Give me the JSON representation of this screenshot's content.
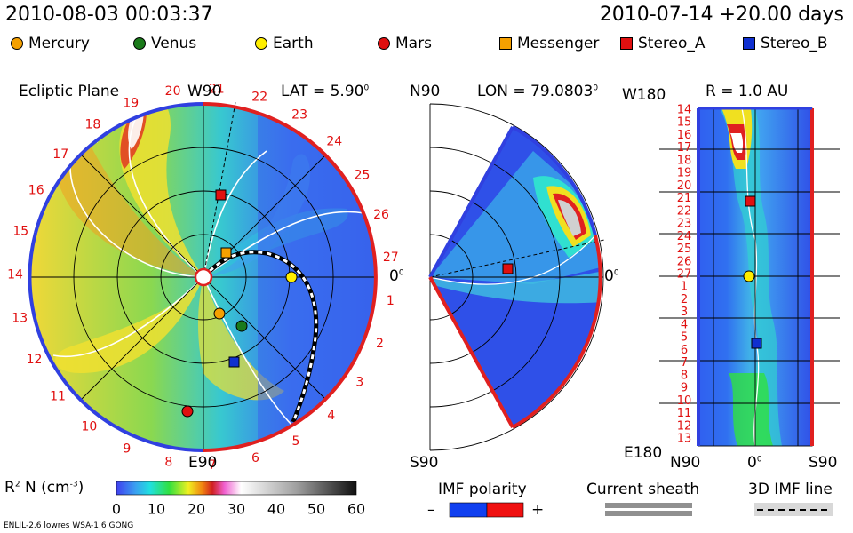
{
  "header": {
    "current_time": "2010-08-03 00:03:37",
    "model_time": "2010-07-14 +20.00 days"
  },
  "legend": [
    {
      "name": "Mercury",
      "shape": "circle",
      "color": "#f5a000"
    },
    {
      "name": "Venus",
      "shape": "circle",
      "color": "#1a7a1a"
    },
    {
      "name": "Earth",
      "shape": "circle",
      "color": "#ffee00"
    },
    {
      "name": "Mars",
      "shape": "circle",
      "color": "#e01010"
    },
    {
      "name": "Messenger",
      "shape": "square",
      "color": "#f5a000"
    },
    {
      "name": "Stereo_A",
      "shape": "square",
      "color": "#e01010"
    },
    {
      "name": "Stereo_B",
      "shape": "square",
      "color": "#1030d0"
    }
  ],
  "panels": {
    "ecliptic": {
      "title": "Ecliptic Plane",
      "top_label": "W90",
      "bottom_label": "E90",
      "right_label": "0",
      "right_label_sup": "0",
      "lat_label": "LAT = 5.90",
      "lat_sup": "0"
    },
    "meridional": {
      "top_label": "N90",
      "bottom_label": "S90",
      "right_label": "0",
      "right_label_sup": "0",
      "lon_label": "LON = 79.0803",
      "lon_sup": "0"
    },
    "radius": {
      "top_left": "W180",
      "bottom_left": "E180",
      "title": "R = 1.0 AU",
      "x_left": "N90",
      "x_mid": "0",
      "x_mid_sup": "0",
      "x_right": "S90"
    }
  },
  "colorbar": {
    "label": "R",
    "label_sup": "2",
    "label_rest": " N (cm",
    "label_exp": "-3",
    "label_end": ")",
    "ticks": [
      "0",
      "10",
      "20",
      "30",
      "40",
      "50",
      "60"
    ]
  },
  "imf": {
    "polarity_label": "IMF polarity",
    "minus": "–",
    "plus": "+",
    "sheath_label": "Current sheath",
    "imf_line_label": "3D IMF line"
  },
  "footer": {
    "model": "ENLIL-2.6 lowres WSA-1.6 GONG"
  },
  "chart_data": [
    {
      "type": "heatmap",
      "title": "Ecliptic Plane",
      "quantity": "R^2 N (cm^-3)",
      "scale_range": [
        0,
        60
      ],
      "carrington_rotation_labels": [
        "19",
        "20",
        "21",
        "22",
        "23",
        "24",
        "25",
        "26",
        "27",
        "1",
        "2",
        "3",
        "4",
        "5",
        "6",
        "7",
        "8",
        "9",
        "10",
        "11",
        "12",
        "13",
        "14",
        "15",
        "16",
        "17",
        "18"
      ],
      "bodies": [
        "Mercury",
        "Venus",
        "Earth",
        "Mars",
        "Messenger",
        "Stereo_A",
        "Stereo_B"
      ]
    },
    {
      "type": "heatmap",
      "title": "LON = 79.0803°",
      "y_range": [
        "S90",
        "N90"
      ]
    },
    {
      "type": "heatmap",
      "title": "R = 1.0 AU",
      "x_ticks": [
        "N90",
        "0°",
        "S90"
      ],
      "y_ticks": [
        "14",
        "15",
        "16",
        "17",
        "18",
        "19",
        "20",
        "21",
        "22",
        "23",
        "24",
        "25",
        "26",
        "27",
        "1",
        "2",
        "3",
        "4",
        "5",
        "6",
        "7",
        "8",
        "9",
        "10",
        "11",
        "12",
        "13"
      ],
      "y_range": [
        "W180",
        "E180"
      ]
    }
  ]
}
